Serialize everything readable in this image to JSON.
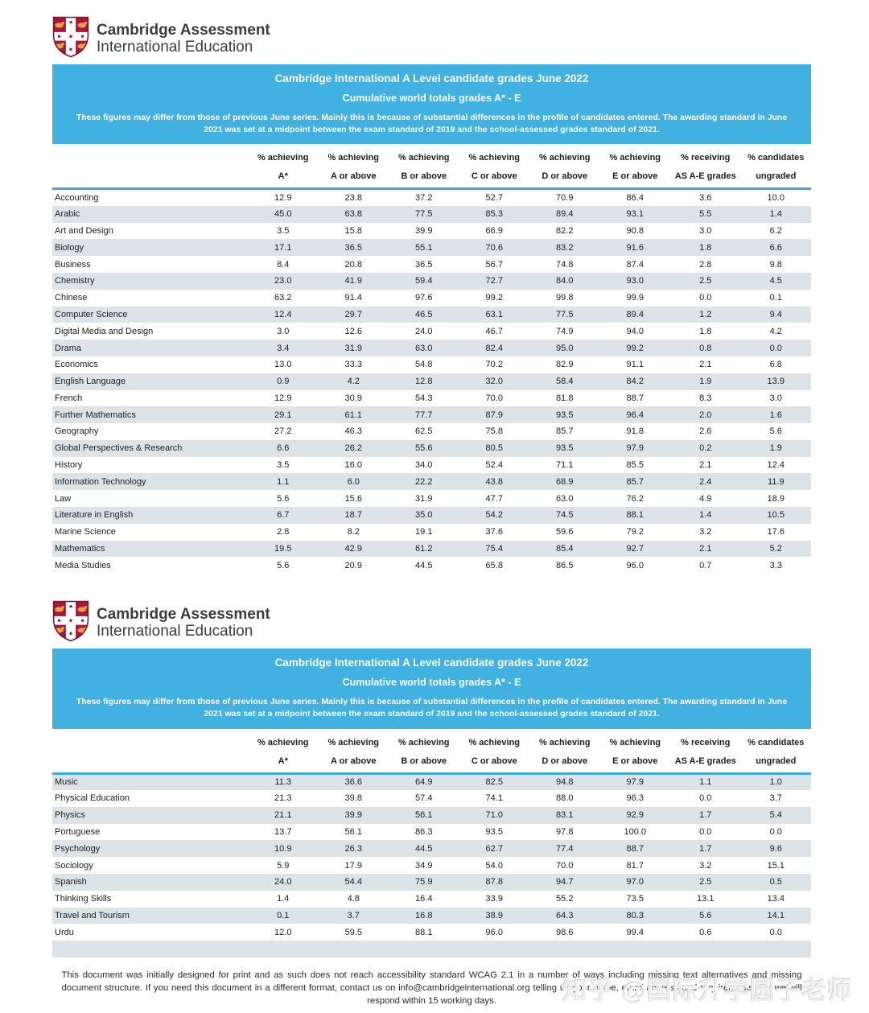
{
  "logo": {
    "line1": "Cambridge Assessment",
    "line2": "International Education"
  },
  "banner": {
    "title": "Cambridge International A Level candidate grades June 2022",
    "subtitle": "Cumulative world totals grades A* - E",
    "note": "These figures may differ from those of previous June series. Mainly this is because of substantial differences in the profile of candidates entered. The awarding standard in June 2021 was set at a midpoint between the exam standard of 2019 and the school-assessed grades standard of 2021."
  },
  "columns": [
    {
      "line1": "% achieving",
      "line2": "A*"
    },
    {
      "line1": "% achieving",
      "line2": "A or above"
    },
    {
      "line1": "% achieving",
      "line2": "B or above"
    },
    {
      "line1": "% achieving",
      "line2": "C or above"
    },
    {
      "line1": "% achieving",
      "line2": "D or above"
    },
    {
      "line1": "% achieving",
      "line2": "E or above"
    },
    {
      "line1": "% receiving",
      "line2": "AS A-E grades"
    },
    {
      "line1": "% candidates",
      "line2": "ungraded"
    }
  ],
  "tables": [
    {
      "shade_parity": 1,
      "trailing_empty_row": false,
      "rows": [
        {
          "subject": "Accounting",
          "values": [
            "12.9",
            "23.8",
            "37.2",
            "52.7",
            "70.9",
            "86.4",
            "3.6",
            "10.0"
          ]
        },
        {
          "subject": "Arabic",
          "values": [
            "45.0",
            "63.8",
            "77.5",
            "85.3",
            "89.4",
            "93.1",
            "5.5",
            "1.4"
          ]
        },
        {
          "subject": "Art and Design",
          "values": [
            "3.5",
            "15.8",
            "39.9",
            "66.9",
            "82.2",
            "90.8",
            "3.0",
            "6.2"
          ]
        },
        {
          "subject": "Biology",
          "values": [
            "17.1",
            "36.5",
            "55.1",
            "70.6",
            "83.2",
            "91.6",
            "1.8",
            "6.6"
          ]
        },
        {
          "subject": "Business",
          "values": [
            "8.4",
            "20.8",
            "36.5",
            "56.7",
            "74.8",
            "87.4",
            "2.8",
            "9.8"
          ]
        },
        {
          "subject": "Chemistry",
          "values": [
            "23.0",
            "41.9",
            "59.4",
            "72.7",
            "84.0",
            "93.0",
            "2.5",
            "4.5"
          ]
        },
        {
          "subject": "Chinese",
          "values": [
            "63.2",
            "91.4",
            "97.6",
            "99.2",
            "99.8",
            "99.9",
            "0.0",
            "0.1"
          ]
        },
        {
          "subject": "Computer Science",
          "values": [
            "12.4",
            "29.7",
            "46.5",
            "63.1",
            "77.5",
            "89.4",
            "1.2",
            "9.4"
          ]
        },
        {
          "subject": "Digital Media and Design",
          "values": [
            "3.0",
            "12.6",
            "24.0",
            "46.7",
            "74.9",
            "94.0",
            "1.8",
            "4.2"
          ]
        },
        {
          "subject": "Drama",
          "values": [
            "3.4",
            "31.9",
            "63.0",
            "82.4",
            "95.0",
            "99.2",
            "0.8",
            "0.0"
          ]
        },
        {
          "subject": "Economics",
          "values": [
            "13.0",
            "33.3",
            "54.8",
            "70.2",
            "82.9",
            "91.1",
            "2.1",
            "6.8"
          ]
        },
        {
          "subject": "English Language",
          "values": [
            "0.9",
            "4.2",
            "12.8",
            "32.0",
            "58.4",
            "84.2",
            "1.9",
            "13.9"
          ]
        },
        {
          "subject": "French",
          "values": [
            "12.9",
            "30.9",
            "54.3",
            "70.0",
            "81.8",
            "88.7",
            "8.3",
            "3.0"
          ]
        },
        {
          "subject": "Further Mathematics",
          "values": [
            "29.1",
            "61.1",
            "77.7",
            "87.9",
            "93.5",
            "96.4",
            "2.0",
            "1.6"
          ]
        },
        {
          "subject": "Geography",
          "values": [
            "27.2",
            "46.3",
            "62.5",
            "75.8",
            "85.7",
            "91.8",
            "2.6",
            "5.6"
          ]
        },
        {
          "subject": "Global Perspectives & Research",
          "values": [
            "6.6",
            "26.2",
            "55.6",
            "80.5",
            "93.5",
            "97.9",
            "0.2",
            "1.9"
          ]
        },
        {
          "subject": "History",
          "values": [
            "3.5",
            "16.0",
            "34.0",
            "52.4",
            "71.1",
            "85.5",
            "2.1",
            "12.4"
          ]
        },
        {
          "subject": "Information Technology",
          "values": [
            "1.1",
            "6.0",
            "22.2",
            "43.8",
            "68.9",
            "85.7",
            "2.4",
            "11.9"
          ]
        },
        {
          "subject": "Law",
          "values": [
            "5.6",
            "15.6",
            "31.9",
            "47.7",
            "63.0",
            "76.2",
            "4.9",
            "18.9"
          ]
        },
        {
          "subject": "Literature in English",
          "values": [
            "6.7",
            "18.7",
            "35.0",
            "54.2",
            "74.5",
            "88.1",
            "1.4",
            "10.5"
          ]
        },
        {
          "subject": "Marine Science",
          "values": [
            "2.8",
            "8.2",
            "19.1",
            "37.6",
            "59.6",
            "79.2",
            "3.2",
            "17.6"
          ]
        },
        {
          "subject": "Mathematics",
          "values": [
            "19.5",
            "42.9",
            "61.2",
            "75.4",
            "85.4",
            "92.7",
            "2.1",
            "5.2"
          ]
        },
        {
          "subject": "Media Studies",
          "values": [
            "5.6",
            "20.9",
            "44.5",
            "65.8",
            "86.5",
            "96.0",
            "0.7",
            "3.3"
          ]
        }
      ]
    },
    {
      "shade_parity": 0,
      "trailing_empty_row": true,
      "rows": [
        {
          "subject": "Music",
          "values": [
            "11.3",
            "36.6",
            "64.9",
            "82.5",
            "94.8",
            "97.9",
            "1.1",
            "1.0"
          ]
        },
        {
          "subject": "Physical Education",
          "values": [
            "21.3",
            "39.8",
            "57.4",
            "74.1",
            "88.0",
            "96.3",
            "0.0",
            "3.7"
          ]
        },
        {
          "subject": "Physics",
          "values": [
            "21.1",
            "39.9",
            "56.1",
            "71.0",
            "83.1",
            "92.9",
            "1.7",
            "5.4"
          ]
        },
        {
          "subject": "Portuguese",
          "values": [
            "13.7",
            "56.1",
            "86.3",
            "93.5",
            "97.8",
            "100.0",
            "0.0",
            "0.0"
          ]
        },
        {
          "subject": "Psychology",
          "values": [
            "10.9",
            "26.3",
            "44.5",
            "62.7",
            "77.4",
            "88.7",
            "1.7",
            "9.6"
          ]
        },
        {
          "subject": "Sociology",
          "values": [
            "5.9",
            "17.9",
            "34.9",
            "54.0",
            "70.0",
            "81.7",
            "3.2",
            "15.1"
          ]
        },
        {
          "subject": "Spanish",
          "values": [
            "24.0",
            "54.4",
            "75.9",
            "87.8",
            "94.7",
            "97.0",
            "2.5",
            "0.5"
          ]
        },
        {
          "subject": "Thinking Skills",
          "values": [
            "1.4",
            "4.8",
            "16.4",
            "33.9",
            "55.2",
            "73.5",
            "13.1",
            "13.4"
          ]
        },
        {
          "subject": "Travel and Tourism",
          "values": [
            "0.1",
            "3.7",
            "16.8",
            "38.9",
            "64.3",
            "80.3",
            "5.6",
            "14.1"
          ]
        },
        {
          "subject": "Urdu",
          "values": [
            "12.0",
            "59.5",
            "88.1",
            "96.0",
            "98.6",
            "99.4",
            "0.6",
            "0.0"
          ]
        }
      ]
    }
  ],
  "footer": {
    "text": "This document was initially designed for print and as such does not reach accessibility standard WCAG 2.1 in a number of ways including missing text alternatives and missing document structure. If you need this document in a different format, contact us on info@cambridgeinternational.org telling us your name, email address and requirements and we will respond within 15 working days."
  },
  "watermark": {
    "text": "知乎 @国际升学圆子老师"
  },
  "colors": {
    "banner_blue": "#41b1e2",
    "rule_blue": "#3fa9d5",
    "row_shade": "#dce3e9",
    "shield_red": "#a3193a",
    "shield_gold": "#e8a33d",
    "text_dark": "#1d1d1b"
  }
}
